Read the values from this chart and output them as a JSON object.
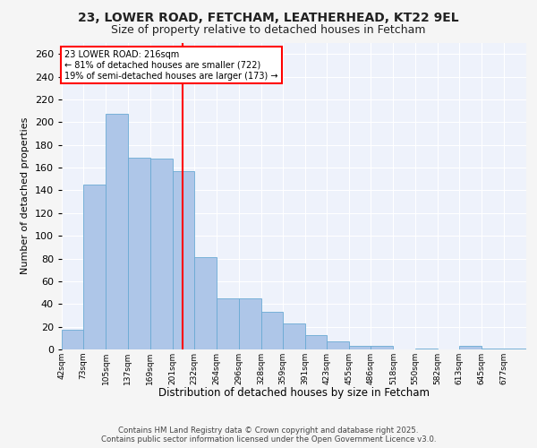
{
  "title1": "23, LOWER ROAD, FETCHAM, LEATHERHEAD, KT22 9EL",
  "title2": "Size of property relative to detached houses in Fetcham",
  "xlabel": "Distribution of detached houses by size in Fetcham",
  "ylabel": "Number of detached properties",
  "bar_color": "#aec6e8",
  "bar_edge_color": "#6aaad4",
  "background_color": "#eef2fb",
  "fig_background_color": "#f5f5f5",
  "grid_color": "#ffffff",
  "annotation_line_color": "red",
  "annotation_line1": "23 LOWER ROAD: 216sqm",
  "annotation_line2": "← 81% of detached houses are smaller (722)",
  "annotation_line3": "19% of semi-detached houses are larger (173) →",
  "footer_line1": "Contains HM Land Registry data © Crown copyright and database right 2025.",
  "footer_line2": "Contains public sector information licensed under the Open Government Licence v3.0.",
  "bin_labels": [
    "42sqm",
    "73sqm",
    "105sqm",
    "137sqm",
    "169sqm",
    "201sqm",
    "232sqm",
    "264sqm",
    "296sqm",
    "328sqm",
    "359sqm",
    "391sqm",
    "423sqm",
    "455sqm",
    "486sqm",
    "518sqm",
    "550sqm",
    "582sqm",
    "613sqm",
    "645sqm",
    "677sqm"
  ],
  "bin_edges": [
    42,
    73,
    105,
    137,
    169,
    201,
    232,
    264,
    296,
    328,
    359,
    391,
    423,
    455,
    486,
    518,
    550,
    582,
    613,
    645,
    677,
    709
  ],
  "bar_heights": [
    17,
    145,
    207,
    169,
    168,
    157,
    81,
    45,
    45,
    33,
    23,
    13,
    7,
    3,
    3,
    0,
    1,
    0,
    3,
    1,
    1
  ],
  "property_size": 216,
  "ylim": [
    0,
    270
  ],
  "yticks": [
    0,
    20,
    40,
    60,
    80,
    100,
    120,
    140,
    160,
    180,
    200,
    220,
    240,
    260
  ]
}
